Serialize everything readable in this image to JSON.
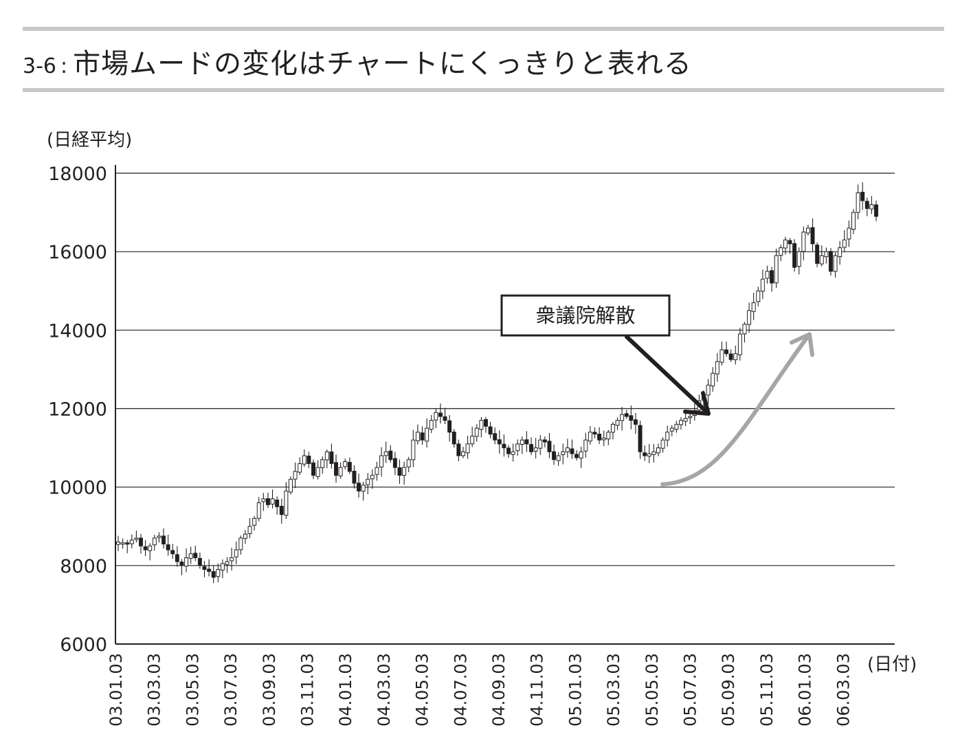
{
  "header": {
    "number": "3-6",
    "separator": ":",
    "title": "市場ムードの変化はチャートにくっきりと表れる"
  },
  "chart_data": {
    "type": "candlestick",
    "ylabel": "(日経平均)",
    "xlabel": "(日付)",
    "ylim": [
      6000,
      18000
    ],
    "yticks": [
      "18000",
      "16000",
      "14000",
      "12000",
      "10000",
      "8000",
      "6000"
    ],
    "grid": true,
    "xticks": [
      "03.01.03",
      "03.03.03",
      "03.05.03",
      "03.07.03",
      "03.09.03",
      "03.11.03",
      "04.01.03",
      "04.03.03",
      "04.05.03",
      "04.07.03",
      "04.09.03",
      "04.11.03",
      "05.01.03",
      "05.03.03",
      "05.05.03",
      "05.07.03",
      "05.09.03",
      "05.11.03",
      "06.01.03",
      "06.03.03"
    ],
    "annotation": {
      "label": "衆議院解散",
      "points_to_date": "05.08.08",
      "points_to_value": 11800
    },
    "trend_arrow": {
      "from_value": 10000,
      "to_value": 14000,
      "color": "#a6a6a6"
    },
    "closes": [
      8600,
      8580,
      8550,
      8650,
      8700,
      8500,
      8400,
      8500,
      8700,
      8750,
      8550,
      8400,
      8300,
      8100,
      8000,
      8200,
      8300,
      8200,
      8000,
      7900,
      7850,
      7700,
      7900,
      8050,
      8100,
      8200,
      8400,
      8700,
      8800,
      9000,
      9200,
      9600,
      9700,
      9550,
      9700,
      9500,
      9300,
      9900,
      10200,
      10400,
      10600,
      10800,
      10600,
      10300,
      10500,
      10700,
      10900,
      10600,
      10300,
      10500,
      10650,
      10400,
      10100,
      9900,
      10050,
      10200,
      10300,
      10500,
      10800,
      10900,
      10700,
      10500,
      10300,
      10500,
      10700,
      11200,
      11400,
      11200,
      11500,
      11700,
      11900,
      11800,
      11700,
      11400,
      11100,
      10800,
      10900,
      11100,
      11300,
      11500,
      11700,
      11550,
      11350,
      11200,
      11100,
      11000,
      10850,
      10900,
      11100,
      11200,
      11100,
      10900,
      11000,
      11200,
      11150,
      10900,
      10700,
      10800,
      10900,
      11000,
      10850,
      10750,
      10900,
      11200,
      11400,
      11350,
      11200,
      11250,
      11400,
      11600,
      11700,
      11850,
      11800,
      11700,
      11600,
      10900,
      10800,
      10850,
      10900,
      11000,
      11200,
      11400,
      11500,
      11600,
      11700,
      11750,
      11800,
      11950,
      12200,
      12350,
      12600,
      12900,
      13200,
      13500,
      13400,
      13250,
      13400,
      13900,
      14150,
      14500,
      14700,
      15000,
      15300,
      15500,
      15200,
      15900,
      16100,
      16300,
      16200,
      15600,
      16000,
      16500,
      16600,
      16200,
      15700,
      15900,
      16000,
      15500,
      15900,
      16100,
      16300,
      16600,
      17000,
      17500,
      17300,
      17100,
      17200,
      16900
    ]
  }
}
